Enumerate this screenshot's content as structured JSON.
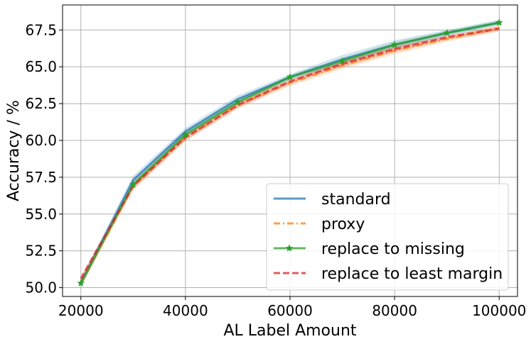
{
  "chart_data": {
    "type": "line",
    "xlabel": "AL Label Amount",
    "ylabel": "Accuracy / %",
    "xlim": [
      16500,
      103500
    ],
    "ylim": [
      49.4,
      69.2
    ],
    "xticks": [
      20000,
      40000,
      60000,
      80000,
      100000
    ],
    "xtick_labels": [
      "20000",
      "40000",
      "60000",
      "80000",
      "100000"
    ],
    "yticks": [
      50.0,
      52.5,
      55.0,
      57.5,
      60.0,
      62.5,
      65.0,
      67.5
    ],
    "ytick_labels": [
      "50.0",
      "52.5",
      "55.0",
      "57.5",
      "60.0",
      "62.5",
      "65.0",
      "67.5"
    ],
    "grid": true,
    "legend_position": "bottom-right",
    "x": [
      20000,
      30000,
      40000,
      50000,
      60000,
      70000,
      80000,
      90000,
      100000
    ],
    "series": [
      {
        "name": "standard",
        "color": "#1f77b4",
        "style": "solid",
        "marker": "none",
        "values": [
          50.3,
          57.3,
          60.6,
          62.8,
          64.3,
          65.5,
          66.5,
          67.3,
          68.0
        ],
        "band": [
          0.3,
          0.3,
          0.25,
          0.25,
          0.2,
          0.3,
          0.3,
          0.2,
          0.2
        ]
      },
      {
        "name": "proxy",
        "color": "#ff7f0e",
        "style": "dashdot",
        "marker": "none",
        "values": [
          50.3,
          56.9,
          60.2,
          62.4,
          63.9,
          65.1,
          66.1,
          66.9,
          67.6
        ],
        "band": [
          0.3,
          0.3,
          0.25,
          0.25,
          0.2,
          0.25,
          0.25,
          0.2,
          0.2
        ]
      },
      {
        "name": "replace to missing",
        "color": "#2ca02c",
        "style": "solid",
        "marker": "star",
        "values": [
          50.3,
          57.0,
          60.4,
          62.6,
          64.3,
          65.4,
          66.5,
          67.3,
          68.0
        ],
        "band": [
          0.2,
          0.2,
          0.2,
          0.2,
          0.15,
          0.2,
          0.2,
          0.15,
          0.15
        ]
      },
      {
        "name": "replace to least margin",
        "color": "#d62728",
        "style": "dashed",
        "marker": "none",
        "values": [
          50.6,
          56.9,
          60.2,
          62.4,
          64.0,
          65.2,
          66.2,
          67.0,
          67.6
        ],
        "band": [
          0.2,
          0.2,
          0.2,
          0.2,
          0.15,
          0.2,
          0.2,
          0.15,
          0.15
        ]
      }
    ]
  }
}
